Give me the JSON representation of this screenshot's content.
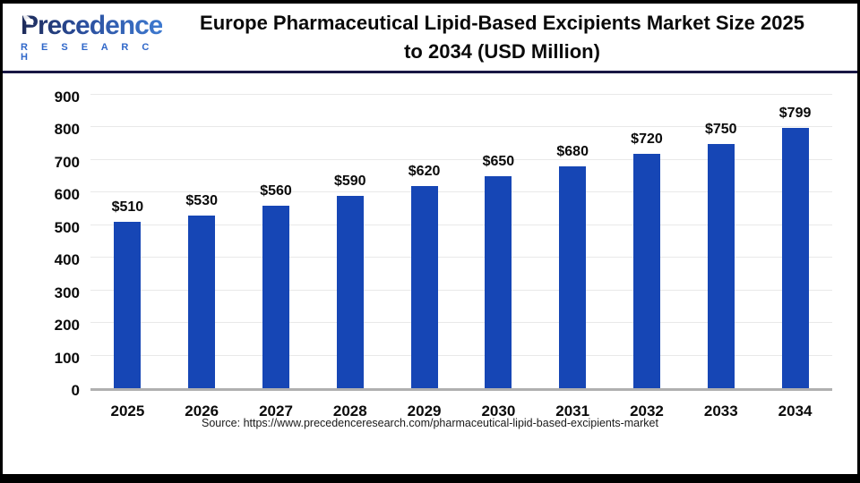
{
  "header": {
    "logo_text": "Precedence",
    "logo_subtext": "R E S E A R C H",
    "title_line1": "Europe Pharmaceutical Lipid-Based Excipients Market Size 2025",
    "title_line2": "to 2034 (USD Million)"
  },
  "chart_data": {
    "type": "bar",
    "title": "Europe Pharmaceutical Lipid-Based Excipients Market Size 2025 to 2034 (USD Million)",
    "unit": "USD Million",
    "categories": [
      "2025",
      "2026",
      "2027",
      "2028",
      "2029",
      "2030",
      "2031",
      "2032",
      "2033",
      "2034"
    ],
    "values": [
      510,
      530,
      560,
      590,
      620,
      650,
      680,
      720,
      750,
      799
    ],
    "value_labels": [
      "$510",
      "$530",
      "$560",
      "$590",
      "$620",
      "$650",
      "$680",
      "$720",
      "$750",
      "$799"
    ],
    "xlabel": "",
    "ylabel": "",
    "ylim": [
      0,
      900
    ],
    "yticks": [
      0,
      100,
      200,
      300,
      400,
      500,
      600,
      700,
      800,
      900
    ],
    "grid": true,
    "legend_position": "none",
    "bar_color": "#1646B5",
    "gridline_color": "#e9e9e9",
    "axis_line_color": "#b0b0b0"
  },
  "footer": {
    "source": "Source: https://www.precedenceresearch.com/pharmaceutical-lipid-based-excipients-market"
  },
  "colors": {
    "divider_navy": "#181744",
    "logo_navy": "#1d2a58",
    "logo_blue": "#2f67c9",
    "border_black": "#000000"
  }
}
